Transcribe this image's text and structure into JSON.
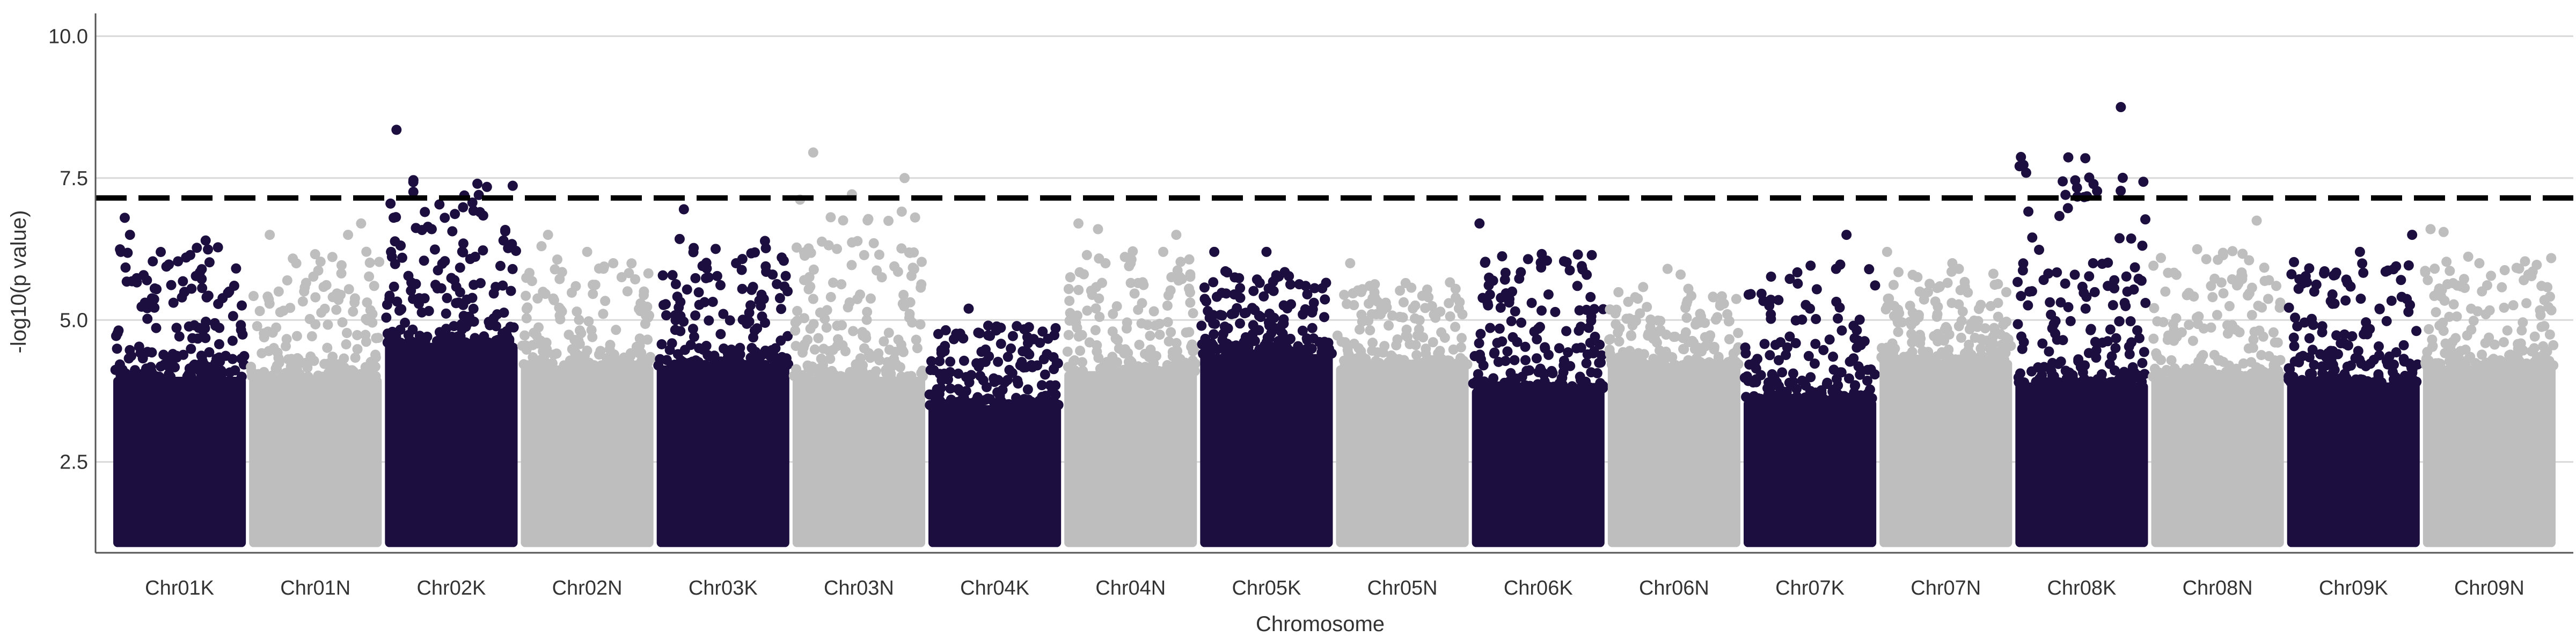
{
  "chart_data": {
    "type": "scatter",
    "title": "",
    "xlabel": "Chromosome",
    "ylabel": "-log10(p value)",
    "ylim": [
      0.9,
      10.4
    ],
    "y_ticks": [
      2.5,
      5.0,
      7.5,
      10.0
    ],
    "y_tick_labels": [
      "2.5",
      "5.0",
      "7.5",
      "10.0"
    ],
    "grid": "horizontal major gridlines only",
    "legend": "none",
    "threshold": 7.15,
    "threshold_style": "dashed black",
    "colors": {
      "odd_chromosome": "#1c0f3f",
      "even_chromosome": "#bebebe",
      "threshold": "#000000",
      "grid": "#d9d9d9",
      "axis": "#555555"
    },
    "categories": [
      "Chr01K",
      "Chr01N",
      "Chr02K",
      "Chr02N",
      "Chr03K",
      "Chr03N",
      "Chr04K",
      "Chr04N",
      "Chr05K",
      "Chr05N",
      "Chr06K",
      "Chr06N",
      "Chr07K",
      "Chr07N",
      "Chr08K",
      "Chr08N",
      "Chr09K",
      "Chr09N"
    ],
    "series": [
      {
        "chromosome": "Chr01K",
        "baseline_max": 4.0,
        "max": 6.8,
        "peaks": [
          [
            0.05,
            6.2
          ],
          [
            0.08,
            6.8
          ],
          [
            0.12,
            6.5
          ],
          [
            0.25,
            5.7
          ],
          [
            0.55,
            6.1
          ],
          [
            0.7,
            6.4
          ],
          [
            0.88,
            5.5
          ]
        ]
      },
      {
        "chromosome": "Chr01N",
        "baseline_max": 4.0,
        "max": 6.7,
        "peaks": [
          [
            0.15,
            6.5
          ],
          [
            0.5,
            5.4
          ],
          [
            0.75,
            6.5
          ],
          [
            0.85,
            6.7
          ],
          [
            0.95,
            5.6
          ]
        ]
      },
      {
        "chromosome": "Chr02K",
        "baseline_max": 4.6,
        "max": 8.35,
        "peaks": [
          [
            0.08,
            8.35
          ],
          [
            0.35,
            6.6
          ],
          [
            0.45,
            6.8
          ],
          [
            0.7,
            7.4
          ],
          [
            0.72,
            6.9
          ],
          [
            0.9,
            6.4
          ]
        ]
      },
      {
        "chromosome": "Chr02N",
        "baseline_max": 4.2,
        "max": 6.5,
        "peaks": [
          [
            0.15,
            6.3
          ],
          [
            0.2,
            6.5
          ],
          [
            0.5,
            6.2
          ],
          [
            0.7,
            6.0
          ]
        ]
      },
      {
        "chromosome": "Chr03K",
        "baseline_max": 4.2,
        "max": 6.95,
        "peaks": [
          [
            0.2,
            6.95
          ],
          [
            0.6,
            6.0
          ],
          [
            0.88,
            5.8
          ],
          [
            0.95,
            6.1
          ]
        ]
      },
      {
        "chromosome": "Chr03N",
        "baseline_max": 4.0,
        "max": 7.95,
        "peaks": [
          [
            0.15,
            7.95
          ],
          [
            0.1,
            6.2
          ],
          [
            0.85,
            7.5
          ],
          [
            0.8,
            5.85
          ]
        ]
      },
      {
        "chromosome": "Chr04K",
        "baseline_max": 3.5,
        "max": 5.2,
        "peaks": [
          [
            0.3,
            5.2
          ],
          [
            0.45,
            4.9
          ],
          [
            0.75,
            4.7
          ],
          [
            0.9,
            4.4
          ]
        ]
      },
      {
        "chromosome": "Chr04N",
        "baseline_max": 4.1,
        "max": 6.7,
        "peaks": [
          [
            0.1,
            6.7
          ],
          [
            0.25,
            6.6
          ],
          [
            0.5,
            6.0
          ],
          [
            0.75,
            6.2
          ],
          [
            0.85,
            6.5
          ]
        ]
      },
      {
        "chromosome": "Chr05K",
        "baseline_max": 4.4,
        "max": 6.2,
        "peaks": [
          [
            0.1,
            6.2
          ],
          [
            0.5,
            6.2
          ],
          [
            0.8,
            5.6
          ]
        ]
      },
      {
        "chromosome": "Chr05N",
        "baseline_max": 4.2,
        "max": 6.0,
        "peaks": [
          [
            0.1,
            6.0
          ],
          [
            0.25,
            5.6
          ],
          [
            0.7,
            5.4
          ]
        ]
      },
      {
        "chromosome": "Chr06K",
        "baseline_max": 3.8,
        "max": 6.7,
        "peaks": [
          [
            0.05,
            6.7
          ],
          [
            0.3,
            5.5
          ],
          [
            0.45,
            5.3
          ],
          [
            0.8,
            5.6
          ]
        ]
      },
      {
        "chromosome": "Chr06N",
        "baseline_max": 4.2,
        "max": 5.9,
        "peaks": [
          [
            0.2,
            5.0
          ],
          [
            0.45,
            5.9
          ],
          [
            0.55,
            5.8
          ],
          [
            0.8,
            5.4
          ]
        ]
      },
      {
        "chromosome": "Chr07K",
        "baseline_max": 3.6,
        "max": 6.5,
        "peaks": [
          [
            0.2,
            5.1
          ],
          [
            0.5,
            5.2
          ],
          [
            0.7,
            5.9
          ],
          [
            0.78,
            6.5
          ]
        ]
      },
      {
        "chromosome": "Chr07N",
        "baseline_max": 4.3,
        "max": 6.2,
        "peaks": [
          [
            0.05,
            6.2
          ],
          [
            0.3,
            5.5
          ],
          [
            0.55,
            6.0
          ],
          [
            0.6,
            5.9
          ],
          [
            0.9,
            5.3
          ]
        ]
      },
      {
        "chromosome": "Chr08K",
        "baseline_max": 3.9,
        "max": 8.75,
        "peaks": [
          [
            0.8,
            8.75
          ],
          [
            0.1,
            5.5
          ],
          [
            0.7,
            5.6
          ],
          [
            0.75,
            5.7
          ],
          [
            0.85,
            5.5
          ]
        ]
      },
      {
        "chromosome": "Chr08N",
        "baseline_max": 4.0,
        "max": 6.75,
        "peaks": [
          [
            0.1,
            5.5
          ],
          [
            0.45,
            5.6
          ],
          [
            0.8,
            6.75
          ],
          [
            0.95,
            5.6
          ]
        ]
      },
      {
        "chromosome": "Chr09K",
        "baseline_max": 3.9,
        "max": 6.5,
        "peaks": [
          [
            0.2,
            5.5
          ],
          [
            0.55,
            6.2
          ],
          [
            0.7,
            5.2
          ],
          [
            0.95,
            6.5
          ]
        ]
      },
      {
        "chromosome": "Chr09N",
        "baseline_max": 4.2,
        "max": 6.6,
        "peaks": [
          [
            0.05,
            6.6
          ],
          [
            0.15,
            6.55
          ],
          [
            0.8,
            5.8
          ],
          [
            0.9,
            5.6
          ]
        ]
      }
    ]
  }
}
